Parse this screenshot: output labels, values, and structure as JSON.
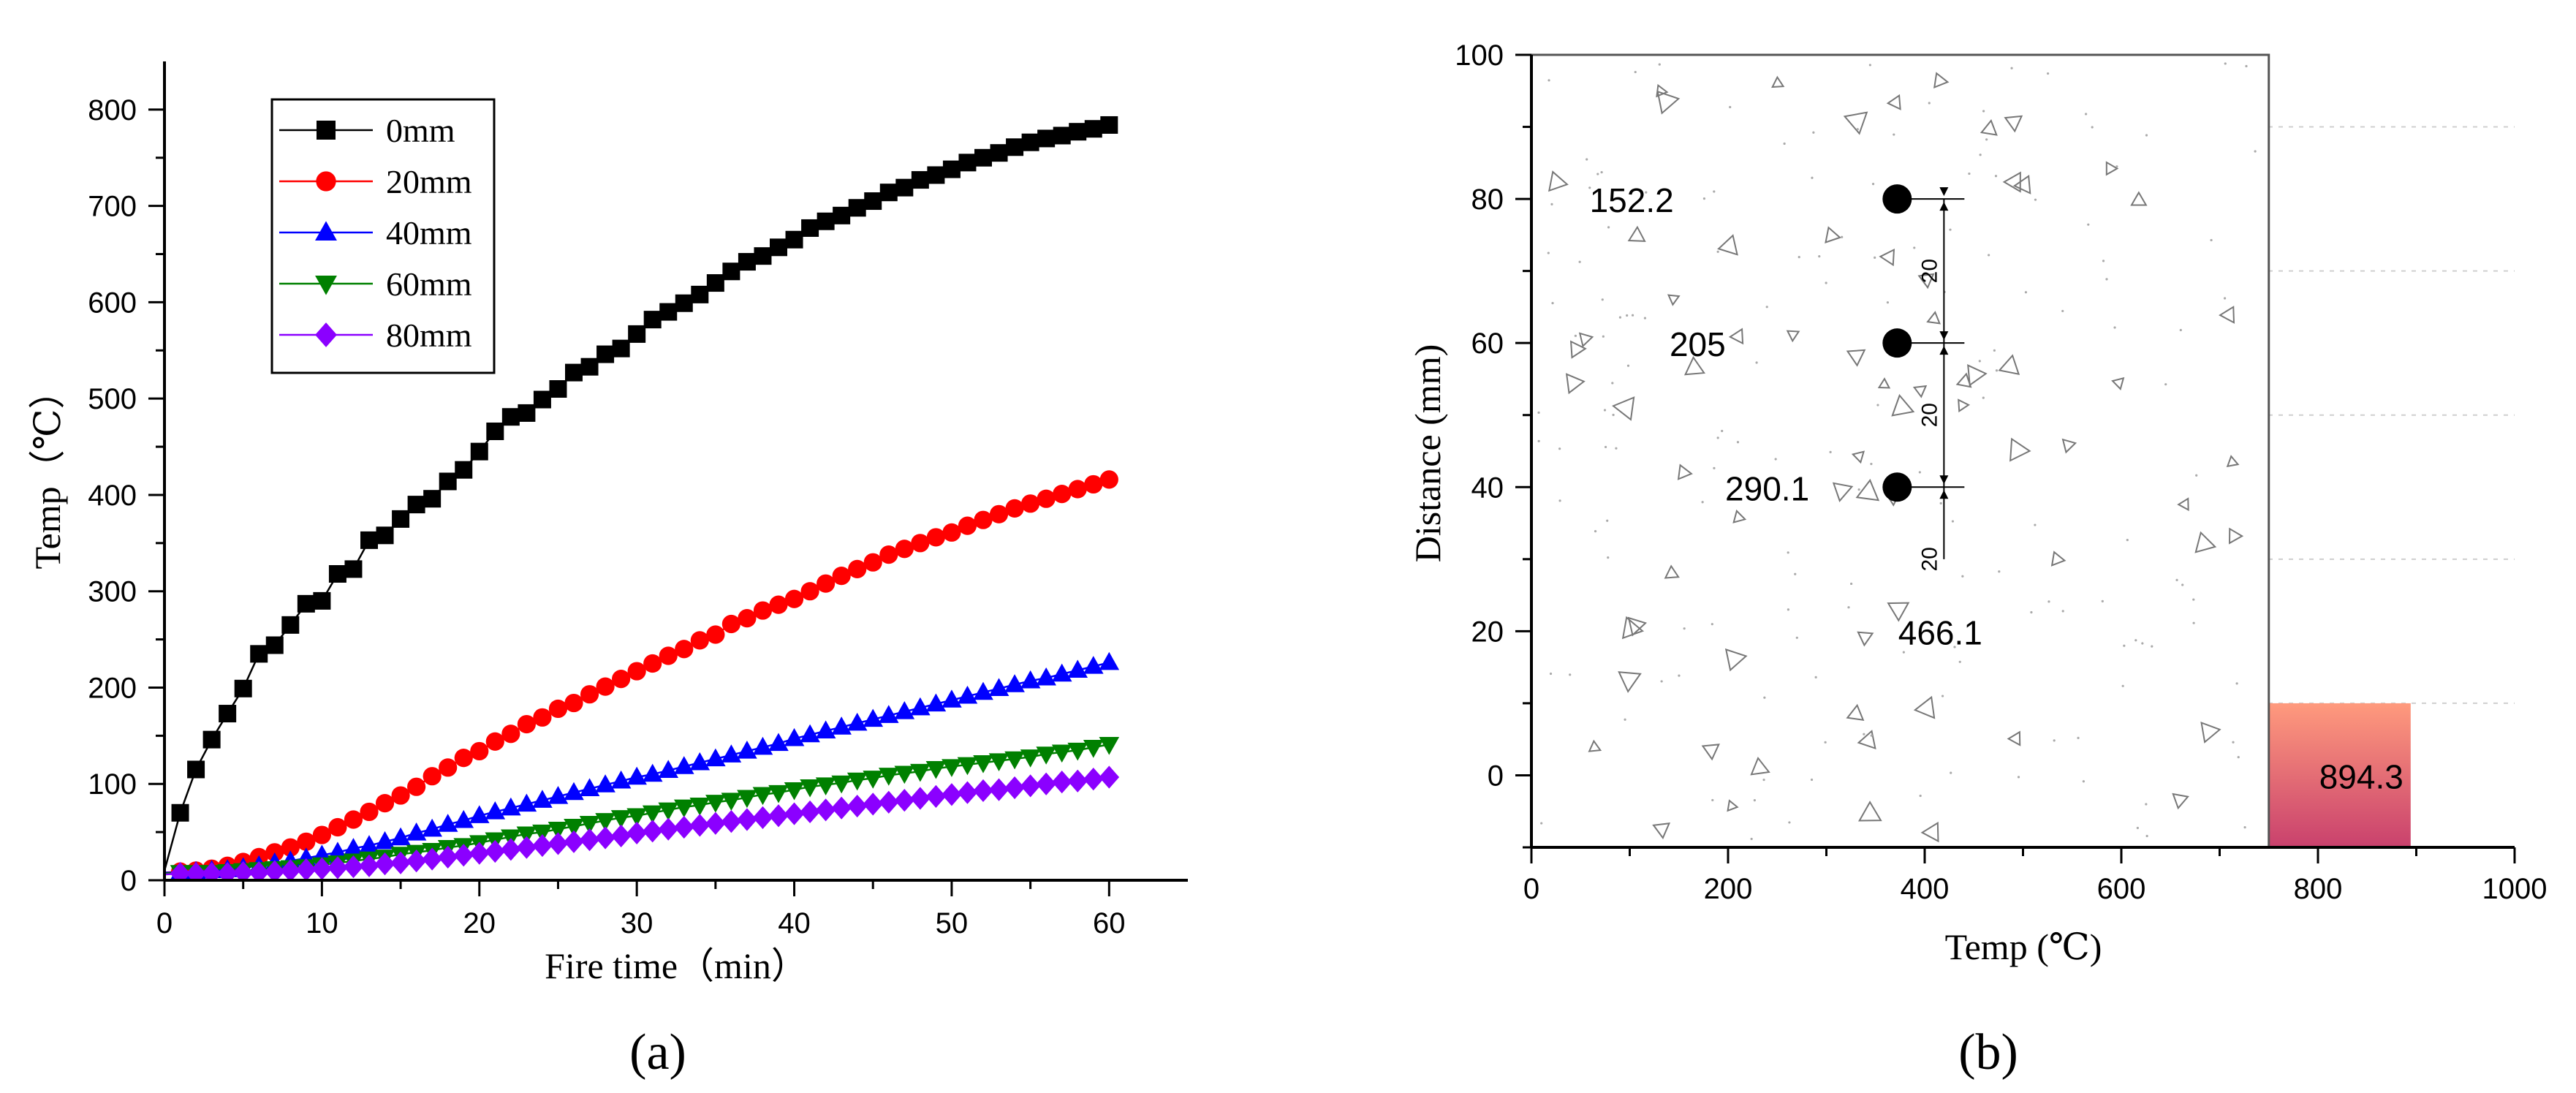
{
  "panel_a": {
    "panel_label": "(a)",
    "chart_data": {
      "type": "line",
      "title": "",
      "xlabel": "Fire time（min）",
      "ylabel": "Temp（℃）",
      "xlim": [
        0,
        65
      ],
      "ylim": [
        0,
        850
      ],
      "xticks": [
        0,
        10,
        20,
        30,
        40,
        50,
        60
      ],
      "yticks": [
        0,
        100,
        200,
        300,
        400,
        500,
        600,
        700,
        800
      ],
      "x": [
        0,
        1,
        2,
        3,
        4,
        5,
        6,
        7,
        8,
        9,
        10,
        11,
        12,
        13,
        14,
        15,
        16,
        17,
        18,
        19,
        20,
        21,
        22,
        23,
        24,
        25,
        26,
        27,
        28,
        29,
        30,
        31,
        32,
        33,
        34,
        35,
        36,
        37,
        38,
        39,
        40,
        41,
        42,
        43,
        44,
        45,
        46,
        47,
        48,
        49,
        50,
        51,
        52,
        53,
        54,
        55,
        56,
        57,
        58,
        59,
        60
      ],
      "legend_position": "top-left",
      "series": [
        {
          "name": "0mm",
          "color": "#000000",
          "marker": "square",
          "values": [
            10,
            70,
            115,
            146,
            173,
            199,
            235,
            244,
            265,
            287,
            290,
            318,
            323,
            353,
            358,
            375,
            390,
            396,
            414,
            426,
            445,
            466,
            481,
            485,
            499,
            510,
            527,
            533,
            546,
            552,
            567,
            582,
            590,
            599,
            608,
            620,
            632,
            642,
            648,
            657,
            665,
            677,
            684,
            690,
            698,
            705,
            714,
            719,
            727,
            732,
            738,
            745,
            750,
            755,
            761,
            766,
            770,
            773,
            777,
            780,
            784
          ]
        },
        {
          "name": "20mm",
          "color": "#ff0000",
          "marker": "circle",
          "values": [
            8,
            9,
            10,
            12,
            15,
            19,
            24,
            29,
            34,
            40,
            47,
            55,
            63,
            71,
            80,
            88,
            97,
            108,
            117,
            127,
            134,
            144,
            152,
            162,
            169,
            178,
            184,
            193,
            201,
            209,
            217,
            225,
            233,
            240,
            249,
            255,
            266,
            272,
            280,
            286,
            292,
            300,
            308,
            316,
            323,
            330,
            338,
            344,
            350,
            356,
            361,
            368,
            374,
            380,
            386,
            391,
            396,
            401,
            406,
            411,
            416
          ]
        },
        {
          "name": "40mm",
          "color": "#0000ff",
          "marker": "triangle-up",
          "values": [
            8,
            8,
            9,
            10,
            11,
            13,
            15,
            18,
            20,
            23,
            26,
            29,
            33,
            36,
            40,
            44,
            49,
            53,
            58,
            62,
            67,
            71,
            75,
            79,
            83,
            87,
            91,
            95,
            99,
            103,
            107,
            110,
            114,
            118,
            122,
            126,
            130,
            134,
            138,
            142,
            147,
            151,
            155,
            159,
            163,
            167,
            171,
            175,
            179,
            183,
            187,
            191,
            195,
            199,
            203,
            207,
            210,
            214,
            218,
            222,
            226
          ]
        },
        {
          "name": "60mm",
          "color": "#008000",
          "marker": "triangle-down",
          "values": [
            7,
            8,
            8,
            8,
            9,
            10,
            11,
            12,
            13,
            14,
            16,
            18,
            20,
            22,
            24,
            27,
            29,
            31,
            34,
            36,
            39,
            42,
            45,
            48,
            50,
            53,
            56,
            59,
            62,
            65,
            67,
            70,
            73,
            76,
            78,
            81,
            83,
            86,
            89,
            91,
            94,
            97,
            99,
            101,
            104,
            106,
            109,
            111,
            113,
            116,
            118,
            120,
            122,
            124,
            126,
            128,
            131,
            133,
            135,
            138,
            141
          ]
        },
        {
          "name": "80mm",
          "color": "#8b00ff",
          "marker": "diamond",
          "values": [
            6,
            7,
            7,
            7,
            7,
            8,
            8,
            9,
            10,
            11,
            12,
            13,
            14,
            15,
            17,
            18,
            20,
            22,
            24,
            26,
            28,
            30,
            32,
            34,
            36,
            38,
            40,
            42,
            44,
            46,
            49,
            51,
            53,
            55,
            57,
            59,
            61,
            63,
            65,
            67,
            69,
            71,
            73,
            75,
            77,
            79,
            81,
            83,
            85,
            87,
            89,
            91,
            93,
            94,
            96,
            98,
            100,
            102,
            103,
            105,
            107
          ]
        }
      ]
    }
  },
  "panel_b": {
    "panel_label": "(b)",
    "chart_data": {
      "type": "bar",
      "orientation": "horizontal-step",
      "title": "",
      "xlabel": "Temp (℃)",
      "ylabel": "Distance (mm)",
      "xlim": [
        0,
        1000
      ],
      "ylim": [
        -10,
        100
      ],
      "xticks": [
        0,
        200,
        400,
        600,
        800,
        1000
      ],
      "yticks": [
        0,
        20,
        40,
        60,
        80,
        100
      ],
      "grid": "dashed horizontal",
      "bands": [
        {
          "distance_range": [
            -10,
            10
          ],
          "temp": 894.3,
          "label": "894.3"
        },
        {
          "distance_range": [
            10,
            30
          ],
          "temp": 466.1,
          "label": "466.1"
        },
        {
          "distance_range": [
            30,
            50
          ],
          "temp": 290.1,
          "label": "290.1"
        },
        {
          "distance_range": [
            50,
            70
          ],
          "temp": 205,
          "label": "205"
        },
        {
          "distance_range": [
            70,
            90
          ],
          "temp": 152.2,
          "label": "152.2"
        }
      ],
      "background_image": "concrete-section-icon",
      "thermocouples": [
        {
          "temp": 372,
          "distance": 80
        },
        {
          "temp": 372,
          "distance": 60
        },
        {
          "temp": 372,
          "distance": 40
        }
      ],
      "section_box": {
        "temp_range": [
          0,
          750
        ],
        "distance_range": [
          -10,
          100
        ]
      },
      "dimension_labels": [
        "20",
        "20",
        "20"
      ],
      "colors": {
        "gradient": [
          "#c9416d",
          "#ff9a7d",
          "#fff1b5",
          "#8ee0c4",
          "#55b9d3",
          "#7e86c0"
        ]
      }
    }
  }
}
